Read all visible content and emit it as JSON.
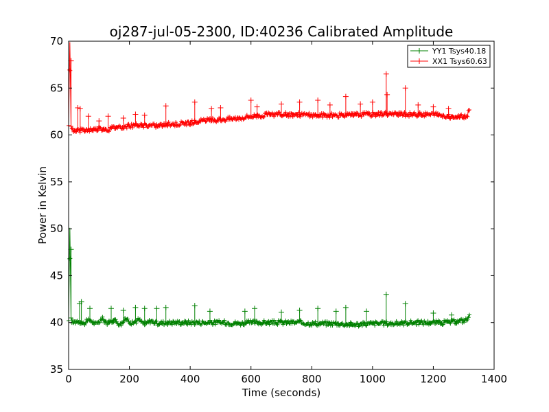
{
  "chart_data": {
    "type": "line",
    "title": "oj287-jul-05-2300, ID:40236 Calibrated Amplitude",
    "xlabel": "Time (seconds)",
    "ylabel": "Power in Kelvin",
    "xlim": [
      0,
      1400
    ],
    "ylim": [
      35,
      70
    ],
    "xticks": [
      0,
      200,
      400,
      600,
      800,
      1000,
      1200,
      1400
    ],
    "yticks": [
      35,
      40,
      45,
      50,
      55,
      60,
      65,
      70
    ],
    "grid": false,
    "legend_position": "top-right",
    "marker": "+",
    "series": [
      {
        "name": "YY1 Tsys40.18",
        "color": "#008000",
        "x": [
          0,
          4,
          8,
          15,
          30,
          50,
          70,
          90,
          110,
          130,
          150,
          170,
          190,
          210,
          230,
          250,
          270,
          290,
          320,
          360,
          400,
          440,
          480,
          520,
          560,
          600,
          640,
          680,
          720,
          760,
          800,
          840,
          880,
          920,
          960,
          1000,
          1040,
          1080,
          1120,
          1160,
          1200,
          1240,
          1280,
          1310,
          1320
        ],
        "y": [
          40.2,
          50.1,
          40.3,
          40.0,
          40.2,
          39.9,
          40.3,
          39.8,
          40.4,
          39.9,
          40.3,
          39.8,
          40.4,
          39.9,
          40.3,
          39.8,
          40.2,
          39.9,
          40.0,
          40.0,
          40.0,
          40.0,
          40.0,
          40.0,
          39.9,
          40.0,
          40.0,
          40.0,
          40.0,
          40.0,
          39.9,
          39.9,
          39.9,
          39.8,
          39.8,
          39.9,
          39.9,
          39.9,
          40.0,
          40.0,
          40.0,
          40.0,
          40.1,
          40.3,
          40.7
        ],
        "spikes": [
          [
            8,
            47.8
          ],
          [
            36,
            42.0
          ],
          [
            42,
            42.2
          ],
          [
            70,
            41.5
          ],
          [
            140,
            41.5
          ],
          [
            180,
            41.3
          ],
          [
            220,
            41.6
          ],
          [
            250,
            41.5
          ],
          [
            290,
            41.5
          ],
          [
            320,
            41.6
          ],
          [
            415,
            41.8
          ],
          [
            465,
            41.2
          ],
          [
            580,
            41.2
          ],
          [
            612,
            41.5
          ],
          [
            700,
            41.1
          ],
          [
            760,
            41.3
          ],
          [
            820,
            41.5
          ],
          [
            880,
            41.2
          ],
          [
            912,
            41.6
          ],
          [
            980,
            41.2
          ],
          [
            1045,
            43.0
          ],
          [
            1108,
            42.0
          ],
          [
            1200,
            41.0
          ],
          [
            1260,
            40.8
          ]
        ]
      },
      {
        "name": "XX1 Tsys60.63",
        "color": "#ff0000",
        "x": [
          0,
          4,
          8,
          15,
          30,
          50,
          70,
          90,
          110,
          130,
          150,
          170,
          190,
          210,
          230,
          250,
          270,
          290,
          320,
          360,
          400,
          440,
          480,
          520,
          560,
          600,
          640,
          680,
          720,
          760,
          800,
          840,
          880,
          920,
          960,
          1000,
          1040,
          1080,
          1120,
          1160,
          1200,
          1240,
          1280,
          1310,
          1320
        ],
        "y": [
          61.0,
          69.9,
          60.8,
          60.6,
          60.5,
          60.5,
          60.6,
          60.6,
          60.7,
          60.6,
          60.8,
          60.9,
          60.9,
          61.0,
          61.0,
          61.0,
          61.0,
          61.0,
          61.1,
          61.2,
          61.3,
          61.5,
          61.6,
          61.7,
          61.8,
          62.0,
          62.1,
          62.2,
          62.2,
          62.2,
          62.1,
          62.1,
          62.1,
          62.1,
          62.2,
          62.2,
          62.3,
          62.2,
          62.2,
          62.2,
          62.2,
          62.0,
          61.9,
          62.0,
          62.7
        ],
        "spikes": [
          [
            8,
            67.9
          ],
          [
            30,
            62.9
          ],
          [
            38,
            62.8
          ],
          [
            65,
            62.0
          ],
          [
            100,
            61.5
          ],
          [
            130,
            62.0
          ],
          [
            180,
            61.8
          ],
          [
            220,
            62.2
          ],
          [
            250,
            62.1
          ],
          [
            320,
            63.1
          ],
          [
            415,
            63.5
          ],
          [
            470,
            62.8
          ],
          [
            500,
            62.9
          ],
          [
            600,
            63.7
          ],
          [
            620,
            63.0
          ],
          [
            700,
            63.3
          ],
          [
            760,
            63.5
          ],
          [
            820,
            63.7
          ],
          [
            860,
            63.2
          ],
          [
            912,
            64.1
          ],
          [
            960,
            63.3
          ],
          [
            1000,
            63.5
          ],
          [
            1045,
            66.5
          ],
          [
            1048,
            64.3
          ],
          [
            1108,
            65.0
          ],
          [
            1150,
            63.2
          ],
          [
            1200,
            63.0
          ],
          [
            1250,
            62.8
          ]
        ]
      }
    ]
  }
}
